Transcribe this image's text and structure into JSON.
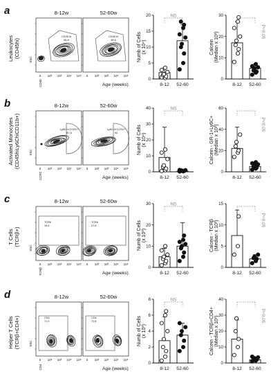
{
  "x_axis_prefix": "Age (weeks)",
  "categories": [
    "8-12",
    "52-60"
  ],
  "flow_headers": [
    "8-12w",
    "52-60w"
  ],
  "panels": [
    {
      "letter": "a",
      "side_label_1": "Leukocytes",
      "side_label_2": "(CD45hi)",
      "flow_y_axis": "SSC",
      "flow_x_axis": "CD45",
      "gate_label_young": "CD45 hi",
      "gate_label_old": "CD45 hi",
      "gate_pct_young": "56.8",
      "gate_pct_old": "38.6",
      "count_ylabel_1": "Numb of Cells",
      "count_ylabel_2": "(x 10⁴)",
      "count_sig": "NS",
      "count_yticks": [
        "0",
        "5",
        "10",
        "15",
        "20"
      ],
      "calc_ylabel_1": "Calcein",
      "calc_ylabel_2": "(Median x 10³)",
      "calc_sig": "P<0.05",
      "calc_yticks": [
        "0",
        "10",
        "20",
        "30"
      ]
    },
    {
      "letter": "b",
      "side_label_1": "Activated Monocytes",
      "side_label_2": "(CD45hiLy6ChiCD11b+)",
      "flow_y_axis": "SSC",
      "flow_x_axis": "CCR2",
      "gate_label_young": "Ly6C hi CCR2+",
      "gate_label_old": "Ly6C hi CCR2+",
      "gate_pct_young": "87.6",
      "gate_pct_old": "94",
      "count_ylabel_1": "Numb of Cells",
      "count_ylabel_2": "(x 10⁴)",
      "count_sig": "NS",
      "count_yticks": [
        "0",
        "10",
        "20",
        "30",
        "40"
      ],
      "calc_ylabel_1": "Calcein - GR-1+Ly6C+",
      "calc_ylabel_2": "(Median x 10³)",
      "calc_sig": "P<0.05",
      "calc_yticks": [
        "0",
        "20",
        "40",
        "60"
      ]
    },
    {
      "letter": "c",
      "side_label_1": "T Cells",
      "side_label_2": "(TCRβ+)",
      "flow_y_axis": "SSC",
      "flow_x_axis": "TCRβ",
      "gate_label_young": "TCRb",
      "gate_label_old": "TCRb",
      "gate_pct_young": "19.5",
      "gate_pct_old": "27.8",
      "count_ylabel_1": "Numb of Cells",
      "count_ylabel_2": "(x 10³)",
      "count_sig": "NS",
      "count_yticks": [
        "0",
        "10",
        "20",
        "30"
      ],
      "calc_ylabel_1": "Calcein - TCRβ",
      "calc_ylabel_2": "(Median x 10³)",
      "calc_sig": "P<0.05",
      "calc_yticks": [
        "0",
        "5",
        "10",
        "15"
      ]
    },
    {
      "letter": "d",
      "side_label_1": "Helper T Cells",
      "side_label_2": "(TCRβ+CD4+)",
      "flow_y_axis": "SSC",
      "flow_x_axis": "CD4",
      "gate_label_young": "CD4",
      "gate_label_old": "CD4",
      "gate_pct_young": "71.3",
      "gate_pct_old": "71.8",
      "count_ylabel_1": "Numb of Cells",
      "count_ylabel_2": "(x 10³)",
      "count_sig": "NS",
      "count_yticks": [
        "0",
        "2",
        "4",
        "6",
        "8"
      ],
      "calc_ylabel_1": "Calcein - TCRβ+CD4+",
      "calc_ylabel_2": "(Median x 10³)",
      "calc_sig": "P<0.05",
      "calc_yticks": [
        "0",
        "10",
        "20",
        "30",
        "40"
      ]
    }
  ],
  "chart_data": [
    {
      "type": "bar",
      "panel": "a",
      "ylabel": "Numb of Cells (x 10⁴)",
      "ylim": [
        0,
        20
      ],
      "categories": [
        "8-12",
        "52-60"
      ],
      "significance": "NS",
      "series": [
        {
          "values": [
            2,
            12
          ],
          "points": [
            [
              0.5,
              0.3,
              0.8,
              1.2,
              1.5,
              2.2,
              2.8,
              3.5
            ],
            [
              3,
              5,
              8,
              10,
              11,
              13,
              14,
              16,
              17,
              18
            ]
          ],
          "errors": [
            1.5,
            5
          ]
        }
      ]
    },
    {
      "type": "bar",
      "panel": "a",
      "ylabel": "Calcein (Median x 10³)",
      "ylim": [
        0,
        30
      ],
      "categories": [
        "8-12",
        "52-60"
      ],
      "significance": "P<0.05",
      "series": [
        {
          "values": [
            17,
            5
          ],
          "points": [
            [
              8,
              12,
              14,
              16,
              18,
              20,
              24,
              27,
              29
            ],
            [
              2,
              3,
              3.5,
              4,
              5,
              5.5,
              6,
              7
            ]
          ],
          "errors": [
            10,
            2
          ]
        }
      ]
    },
    {
      "type": "bar",
      "panel": "b",
      "ylabel": "Numb of Cells (x 10⁴)",
      "ylim": [
        0,
        40
      ],
      "categories": [
        "8-12",
        "52-60"
      ],
      "significance": "NS",
      "series": [
        {
          "values": [
            9,
            0.5
          ],
          "points": [
            [
              0.5,
              1,
              2,
              3,
              4,
              8,
              12,
              14
            ],
            [
              0.2,
              0.3,
              0.5,
              0.6,
              0.8,
              1,
              1.2
            ]
          ],
          "errors": [
            19,
            0.5
          ]
        }
      ]
    },
    {
      "type": "bar",
      "panel": "b",
      "ylabel": "Calcein - GR-1+Ly6C+ (Median x 10³)",
      "ylim": [
        0,
        60
      ],
      "categories": [
        "8-12",
        "52-60"
      ],
      "significance": "P<0.05",
      "series": [
        {
          "values": [
            22,
            5
          ],
          "points": [
            [
              14,
              18,
              20,
              24,
              28,
              35
            ],
            [
              2,
              3,
              4,
              5,
              6,
              7,
              8,
              9
            ]
          ],
          "errors": [
            20,
            3
          ]
        }
      ]
    },
    {
      "type": "bar",
      "panel": "c",
      "ylabel": "Numb of Cells (x 10³)",
      "ylim": [
        0,
        30
      ],
      "categories": [
        "8-12",
        "52-60"
      ],
      "significance": "NS",
      "series": [
        {
          "values": [
            5,
            10
          ],
          "points": [
            [
              1,
              2,
              3,
              4,
              5,
              6,
              8,
              10
            ],
            [
              3,
              5,
              7,
              9,
              10,
              11,
              12,
              13,
              15
            ]
          ],
          "errors": [
            4,
            11
          ]
        }
      ]
    },
    {
      "type": "bar",
      "panel": "c",
      "ylabel": "Calcein - TCRβ (Median x 10³)",
      "ylim": [
        0,
        15
      ],
      "categories": [
        "8-12",
        "52-60"
      ],
      "significance": "P<0.05",
      "series": [
        {
          "values": [
            7.5,
            2
          ],
          "points": [
            [
              3,
              5,
              12
            ],
            [
              1,
              1.5,
              2,
              2.2,
              2.5,
              3
            ]
          ],
          "errors": [
            6,
            1
          ]
        }
      ]
    },
    {
      "type": "bar",
      "panel": "d",
      "ylabel": "Numb of Cells (x 10³)",
      "ylim": [
        0,
        8
      ],
      "categories": [
        "8-12",
        "52-60"
      ],
      "significance": "NS",
      "series": [
        {
          "values": [
            2.8,
            3.5
          ],
          "points": [
            [
              0.3,
              0.8,
              1.5,
              2,
              3,
              4,
              5,
              6,
              6.5
            ],
            [
              1.5,
              2,
              2.8,
              3.5,
              4,
              4.5,
              5
            ]
          ],
          "errors": [
            3,
            1.5
          ]
        }
      ]
    },
    {
      "type": "bar",
      "panel": "d",
      "ylabel": "Calcein - TCRβ+CD4+ (Median x 10³)",
      "ylim": [
        0,
        40
      ],
      "categories": [
        "8-12",
        "52-60"
      ],
      "significance": "P<0.05",
      "series": [
        {
          "values": [
            15,
            2
          ],
          "points": [
            [
              5,
              10,
              15,
              20,
              28
            ],
            [
              1,
              1.5,
              2,
              2.5,
              3,
              3.5,
              4
            ]
          ],
          "errors": [
            12,
            1
          ]
        }
      ]
    }
  ]
}
